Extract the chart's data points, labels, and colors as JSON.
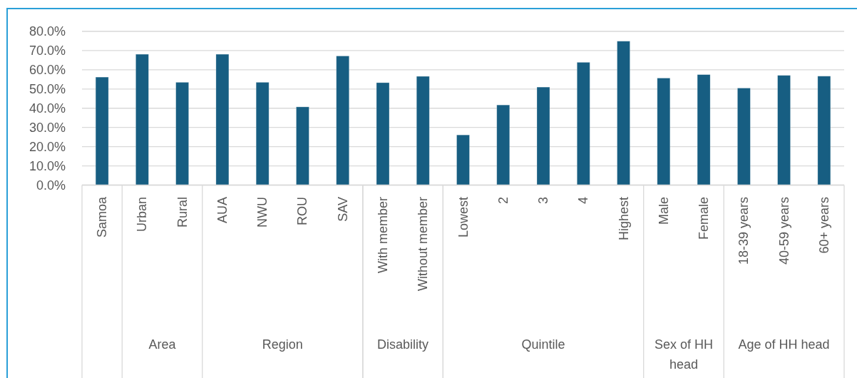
{
  "chart_data": {
    "type": "bar",
    "categories": [
      "Samoa",
      "Urban",
      "Rural",
      "AUA",
      "NWU",
      "ROU",
      "SAV",
      "With member",
      "Without member",
      "Lowest",
      "2",
      "3",
      "4",
      "Highest",
      "Male",
      "Female",
      "18-39 years",
      "40-59 years",
      "60+ years"
    ],
    "values": [
      56.2,
      68.1,
      53.5,
      68.1,
      53.5,
      40.7,
      67.2,
      53.3,
      56.6,
      26.1,
      41.7,
      51.0,
      63.9,
      74.9,
      55.7,
      57.5,
      50.5,
      57.1,
      56.7
    ],
    "color": "#175e82",
    "ylim": [
      0,
      80
    ],
    "yticks": [
      {
        "value": 0,
        "label": "0.0%"
      },
      {
        "value": 10,
        "label": "10.0%"
      },
      {
        "value": 20,
        "label": "20.0%"
      },
      {
        "value": 30,
        "label": "30.0%"
      },
      {
        "value": 40,
        "label": "40.0%"
      },
      {
        "value": 50,
        "label": "50.0%"
      },
      {
        "value": 60,
        "label": "60.0%"
      },
      {
        "value": 70,
        "label": "70.0%"
      },
      {
        "value": 80,
        "label": "80.0%"
      }
    ],
    "grid": "y",
    "annotations": [
      "Area",
      "Region",
      "Disability",
      "Quintile",
      "Sex of HH head",
      "Age of HH head"
    ]
  }
}
